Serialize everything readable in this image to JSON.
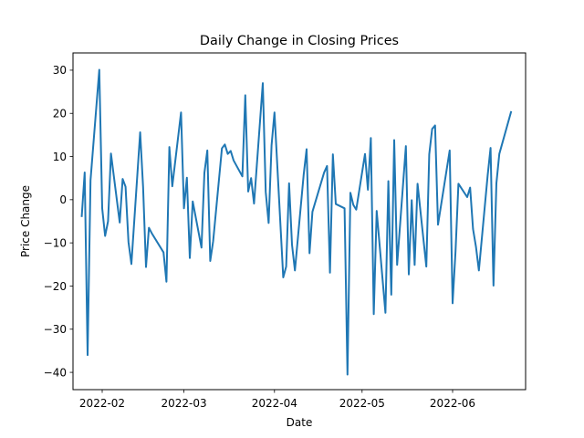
{
  "chart_data": {
    "type": "line",
    "title": "Daily Change in Closing Prices",
    "xlabel": "Date",
    "ylabel": "Price Change",
    "xlim": [
      "2022-01-22",
      "2022-06-26"
    ],
    "ylim": [
      -44,
      34
    ],
    "x_ticks": [
      {
        "date": "2022-02-01",
        "label": "2022-02"
      },
      {
        "date": "2022-03-01",
        "label": "2022-03"
      },
      {
        "date": "2022-04-01",
        "label": "2022-04"
      },
      {
        "date": "2022-05-01",
        "label": "2022-05"
      },
      {
        "date": "2022-06-01",
        "label": "2022-06"
      }
    ],
    "y_ticks": [
      {
        "value": -40,
        "label": "−40"
      },
      {
        "value": -30,
        "label": "−30"
      },
      {
        "value": -20,
        "label": "−20"
      },
      {
        "value": -10,
        "label": "−10"
      },
      {
        "value": 0,
        "label": "0"
      },
      {
        "value": 10,
        "label": "10"
      },
      {
        "value": 20,
        "label": "20"
      },
      {
        "value": 30,
        "label": "30"
      }
    ],
    "grid": false,
    "legend": false,
    "series": [
      {
        "color": "#1f77b4",
        "x": [
          "2022-01-25",
          "2022-01-26",
          "2022-01-27",
          "2022-01-28",
          "2022-01-31",
          "2022-02-01",
          "2022-02-02",
          "2022-02-03",
          "2022-02-04",
          "2022-02-07",
          "2022-02-08",
          "2022-02-09",
          "2022-02-10",
          "2022-02-11",
          "2022-02-14",
          "2022-02-15",
          "2022-02-16",
          "2022-02-17",
          "2022-02-18",
          "2022-02-22",
          "2022-02-23",
          "2022-02-24",
          "2022-02-25",
          "2022-02-28",
          "2022-03-01",
          "2022-03-02",
          "2022-03-03",
          "2022-03-04",
          "2022-03-07",
          "2022-03-08",
          "2022-03-09",
          "2022-03-10",
          "2022-03-11",
          "2022-03-14",
          "2022-03-15",
          "2022-03-16",
          "2022-03-17",
          "2022-03-18",
          "2022-03-21",
          "2022-03-22",
          "2022-03-23",
          "2022-03-24",
          "2022-03-25",
          "2022-03-28",
          "2022-03-29",
          "2022-03-30",
          "2022-03-31",
          "2022-04-01",
          "2022-04-04",
          "2022-04-05",
          "2022-04-06",
          "2022-04-07",
          "2022-04-08",
          "2022-04-11",
          "2022-04-12",
          "2022-04-13",
          "2022-04-14",
          "2022-04-18",
          "2022-04-19",
          "2022-04-20",
          "2022-04-21",
          "2022-04-22",
          "2022-04-25",
          "2022-04-26",
          "2022-04-27",
          "2022-04-28",
          "2022-04-29",
          "2022-05-02",
          "2022-05-03",
          "2022-05-04",
          "2022-05-05",
          "2022-05-06",
          "2022-05-09",
          "2022-05-10",
          "2022-05-11",
          "2022-05-12",
          "2022-05-13",
          "2022-05-16",
          "2022-05-17",
          "2022-05-18",
          "2022-05-19",
          "2022-05-20",
          "2022-05-23",
          "2022-05-24",
          "2022-05-25",
          "2022-05-26",
          "2022-05-27",
          "2022-05-31",
          "2022-06-01",
          "2022-06-02",
          "2022-06-03",
          "2022-06-06",
          "2022-06-07",
          "2022-06-08",
          "2022-06-09",
          "2022-06-10",
          "2022-06-13",
          "2022-06-14",
          "2022-06-15",
          "2022-06-16",
          "2022-06-17",
          "2022-06-21"
        ],
        "y": [
          -3.8,
          6.3,
          -36.0,
          4.5,
          30.1,
          -2.0,
          -8.4,
          -5.0,
          10.7,
          -5.3,
          4.8,
          3.0,
          -9.8,
          -14.9,
          15.6,
          3.0,
          -15.6,
          -6.5,
          -7.8,
          -12.2,
          -19.0,
          12.2,
          3.1,
          20.2,
          -2.0,
          5.1,
          -13.5,
          -0.4,
          -11.1,
          6.2,
          11.4,
          -14.2,
          -9.6,
          11.9,
          12.8,
          10.6,
          11.3,
          9.1,
          5.4,
          24.2,
          1.9,
          5.0,
          -0.9,
          27.0,
          1.8,
          -5.4,
          12.6,
          20.2,
          -18.0,
          -15.5,
          3.8,
          -10.4,
          -16.4,
          5.8,
          11.7,
          -12.4,
          -2.8,
          6.3,
          7.8,
          -16.9,
          10.5,
          -1.0,
          -2.0,
          -40.5,
          1.6,
          -1.2,
          -2.3,
          10.6,
          2.3,
          14.3,
          -26.5,
          -2.6,
          -26.2,
          4.3,
          -22.0,
          13.8,
          -15.1,
          12.4,
          -17.3,
          -0.1,
          -15.1,
          3.7,
          -15.5,
          10.5,
          16.4,
          17.2,
          -5.8,
          11.4,
          -24.0,
          -12.0,
          3.7,
          0.6,
          2.8,
          -6.8,
          -10.9,
          -16.4,
          5.6,
          12.0,
          -19.9,
          3.8,
          10.6,
          20.3
        ]
      }
    ]
  }
}
